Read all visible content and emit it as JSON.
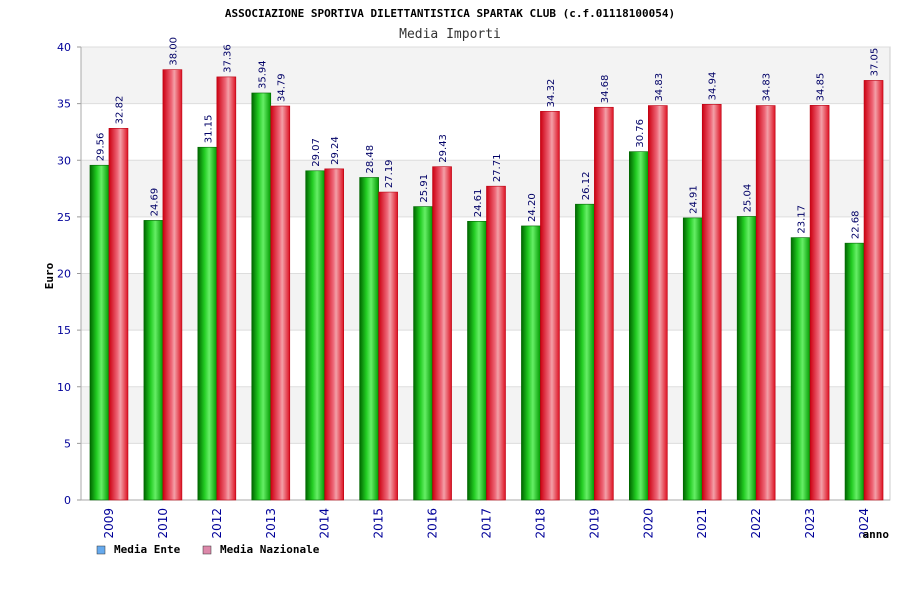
{
  "chart_data": {
    "type": "bar",
    "title": "ASSOCIAZIONE SPORTIVA DILETTANTISTICA SPARTAK CLUB (c.f.01118100054)",
    "subtitle": "Media Importi",
    "xlabel": "anno",
    "ylabel": "Euro",
    "ylim": [
      0,
      40
    ],
    "yticks": [
      0,
      5,
      10,
      15,
      20,
      25,
      30,
      35,
      40
    ],
    "grid": true,
    "legend_position": "bottom-left",
    "categories": [
      "2009",
      "2010",
      "2012",
      "2013",
      "2014",
      "2015",
      "2016",
      "2017",
      "2018",
      "2019",
      "2020",
      "2021",
      "2022",
      "2023",
      "2024"
    ],
    "series": [
      {
        "name": "Media Ente",
        "color": "#00bb00",
        "legend_color": "#66aaee",
        "values": [
          29.56,
          24.69,
          31.15,
          35.94,
          29.07,
          28.48,
          25.91,
          24.61,
          24.2,
          26.12,
          30.76,
          24.91,
          25.04,
          23.17,
          22.68
        ],
        "labels": [
          "29.56",
          "24.69",
          "31.15",
          "35.94",
          "29.07",
          "28.48",
          "25.91",
          "24.61",
          "24.20",
          "26.12",
          "30.76",
          "24.91",
          "25.04",
          "23.17",
          "22.68"
        ]
      },
      {
        "name": "Media Nazionale",
        "color": "#ee2233",
        "legend_color": "#dd88aa",
        "values": [
          32.82,
          38.0,
          37.36,
          34.79,
          29.24,
          27.19,
          29.43,
          27.71,
          34.32,
          34.68,
          34.83,
          34.94,
          34.83,
          34.85,
          37.05
        ],
        "labels": [
          "32.82",
          "38.00",
          "37.36",
          "34.79",
          "29.24",
          "27.19",
          "29.43",
          "27.71",
          "34.32",
          "34.68",
          "34.83",
          "34.94",
          "34.83",
          "34.85",
          "37.05"
        ]
      }
    ]
  }
}
